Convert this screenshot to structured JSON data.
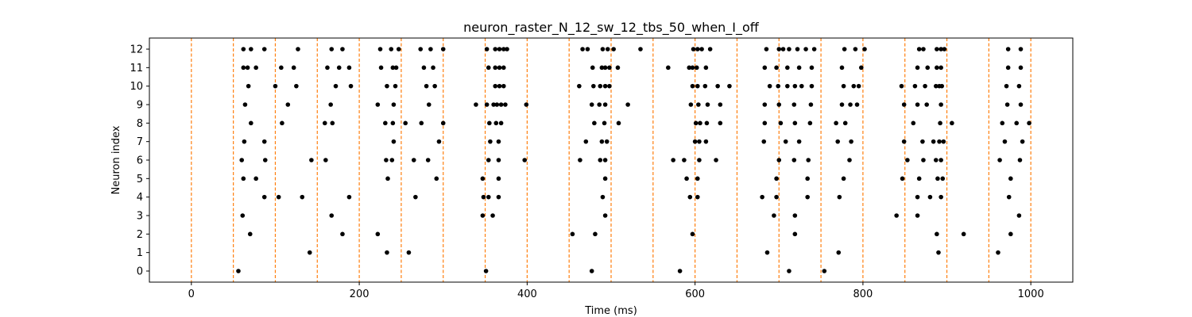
{
  "chart_data": {
    "type": "scatter",
    "title": "neuron_raster_N_12_sw_12_tbs_50_when_I_off",
    "xlabel": "Time (ms)",
    "ylabel": "Neuron index",
    "xlim": [
      -50,
      1050
    ],
    "ylim": [
      -0.6,
      12.6
    ],
    "xticks": [
      0,
      200,
      400,
      600,
      800,
      1000
    ],
    "yticks": [
      0,
      1,
      2,
      3,
      4,
      5,
      6,
      7,
      8,
      9,
      10,
      11,
      12
    ],
    "grid": false,
    "colors": {
      "spikes": "#000000",
      "burst_lines": "#ff7f0e"
    },
    "vlines": [
      0,
      50,
      100,
      150,
      200,
      250,
      300,
      350,
      400,
      450,
      500,
      550,
      600,
      650,
      700,
      750,
      800,
      850,
      900,
      950,
      1000
    ],
    "series": [
      {
        "x": [
          62,
          71,
          87,
          127,
          167,
          180,
          225,
          238,
          247,
          273,
          285,
          300,
          352,
          362,
          367,
          372,
          376,
          466,
          472,
          490,
          496,
          503,
          535,
          598,
          603,
          608,
          618,
          685,
          700,
          705,
          712,
          722,
          732,
          742,
          778,
          791,
          802,
          867,
          872,
          888,
          893,
          897,
          973,
          988
        ],
        "y": [
          12,
          12,
          12,
          12,
          12,
          12,
          12,
          12,
          12,
          12,
          12,
          12,
          12,
          12,
          12,
          12,
          12,
          12,
          12,
          12,
          12,
          12,
          12,
          12,
          12,
          12,
          12,
          12,
          12,
          12,
          12,
          12,
          12,
          12,
          12,
          12,
          12,
          12,
          12,
          12,
          12,
          12,
          12,
          12
        ]
      },
      {
        "x": [
          62,
          67,
          77,
          107,
          122,
          162,
          176,
          188,
          226,
          240,
          244,
          277,
          288,
          354,
          362,
          367,
          372,
          478,
          489,
          493,
          498,
          508,
          568,
          593,
          597,
          602,
          613,
          683,
          697,
          710,
          724,
          739,
          775,
          798,
          865,
          877,
          888,
          893,
          973,
          988
        ],
        "y": [
          11,
          11,
          11,
          11,
          11,
          11,
          11,
          11,
          11,
          11,
          11,
          11,
          11,
          11,
          11,
          11,
          11,
          11,
          11,
          11,
          11,
          11,
          11,
          11,
          11,
          11,
          11,
          11,
          11,
          11,
          11,
          11,
          11,
          11,
          11,
          11,
          11,
          11,
          11,
          11
        ]
      },
      {
        "x": [
          68,
          100,
          125,
          172,
          190,
          233,
          243,
          280,
          290,
          362,
          367,
          372,
          462,
          479,
          487,
          493,
          498,
          597,
          603,
          612,
          627,
          641,
          689,
          699,
          710,
          719,
          727,
          739,
          777,
          789,
          795,
          846,
          862,
          874,
          887,
          891,
          894,
          971,
          986
        ],
        "y": [
          10,
          10,
          10,
          10,
          10,
          10,
          10,
          10,
          10,
          10,
          10,
          10,
          10,
          10,
          10,
          10,
          10,
          10,
          10,
          10,
          10,
          10,
          10,
          10,
          10,
          10,
          10,
          10,
          10,
          10,
          10,
          10,
          10,
          10,
          10,
          10,
          10,
          10,
          10
        ]
      },
      {
        "x": [
          64,
          115,
          166,
          222,
          241,
          283,
          339,
          352,
          360,
          364,
          369,
          374,
          399,
          477,
          486,
          493,
          520,
          595,
          604,
          615,
          630,
          683,
          700,
          718,
          738,
          775,
          785,
          793,
          849,
          865,
          876,
          893,
          972,
          988
        ],
        "y": [
          9,
          9,
          9,
          9,
          9,
          9,
          9,
          9,
          9,
          9,
          9,
          9,
          9,
          9,
          9,
          9,
          9,
          9,
          9,
          9,
          9,
          9,
          9,
          9,
          9,
          9,
          9,
          9,
          9,
          9,
          9,
          9,
          9,
          9
        ]
      },
      {
        "x": [
          71,
          108,
          159,
          168,
          231,
          240,
          255,
          274,
          300,
          355,
          363,
          369,
          480,
          492,
          509,
          601,
          606,
          614,
          630,
          683,
          702,
          719,
          737,
          768,
          779,
          860,
          892,
          906,
          966,
          983,
          998
        ],
        "y": [
          8,
          8,
          8,
          8,
          8,
          8,
          8,
          8,
          8,
          8,
          8,
          8,
          8,
          8,
          8,
          8,
          8,
          8,
          8,
          8,
          8,
          8,
          8,
          8,
          8,
          8,
          8,
          8,
          8,
          8,
          8
        ]
      },
      {
        "x": [
          63,
          87,
          241,
          295,
          356,
          366,
          470,
          489,
          495,
          600,
          605,
          613,
          682,
          708,
          724,
          770,
          786,
          849,
          871,
          884,
          891,
          896,
          969,
          990
        ],
        "y": [
          7,
          7,
          7,
          7,
          7,
          7,
          7,
          7,
          7,
          7,
          7,
          7,
          7,
          7,
          7,
          7,
          7,
          7,
          7,
          7,
          7,
          7,
          7,
          7
        ]
      },
      {
        "x": [
          60,
          88,
          143,
          160,
          232,
          239,
          265,
          282,
          354,
          366,
          397,
          463,
          487,
          493,
          574,
          587,
          605,
          625,
          700,
          718,
          735,
          784,
          853,
          872,
          887,
          893,
          963,
          987
        ],
        "y": [
          6,
          6,
          6,
          6,
          6,
          6,
          6,
          6,
          6,
          6,
          6,
          6,
          6,
          6,
          6,
          6,
          6,
          6,
          6,
          6,
          6,
          6,
          6,
          6,
          6,
          6,
          6,
          6
        ]
      },
      {
        "x": [
          62,
          77,
          234,
          292,
          347,
          366,
          493,
          590,
          603,
          697,
          734,
          777,
          847,
          867,
          889,
          895,
          976
        ],
        "y": [
          5,
          5,
          5,
          5,
          5,
          5,
          5,
          5,
          5,
          5,
          5,
          5,
          5,
          5,
          5,
          5,
          5
        ]
      },
      {
        "x": [
          87,
          104,
          132,
          188,
          267,
          348,
          354,
          366,
          490,
          594,
          603,
          680,
          697,
          734,
          772,
          865,
          880,
          893,
          974
        ],
        "y": [
          4,
          4,
          4,
          4,
          4,
          4,
          4,
          4,
          4,
          4,
          4,
          4,
          4,
          4,
          4,
          4,
          4,
          4,
          4
        ]
      },
      {
        "x": [
          61,
          167,
          347,
          359,
          493,
          694,
          719,
          840,
          865,
          986
        ],
        "y": [
          3,
          3,
          3,
          3,
          3,
          3,
          3,
          3,
          3,
          3
        ]
      },
      {
        "x": [
          70,
          180,
          222,
          454,
          481,
          597,
          719,
          888,
          920,
          976
        ],
        "y": [
          2,
          2,
          2,
          2,
          2,
          2,
          2,
          2,
          2,
          2
        ]
      },
      {
        "x": [
          141,
          233,
          259,
          686,
          771,
          890,
          961
        ],
        "y": [
          1,
          1,
          1,
          1,
          1,
          1,
          1
        ]
      },
      {
        "x": [
          56,
          351,
          477,
          582,
          712,
          754
        ],
        "y": [
          0,
          0,
          0,
          0,
          0,
          0
        ]
      }
    ]
  }
}
